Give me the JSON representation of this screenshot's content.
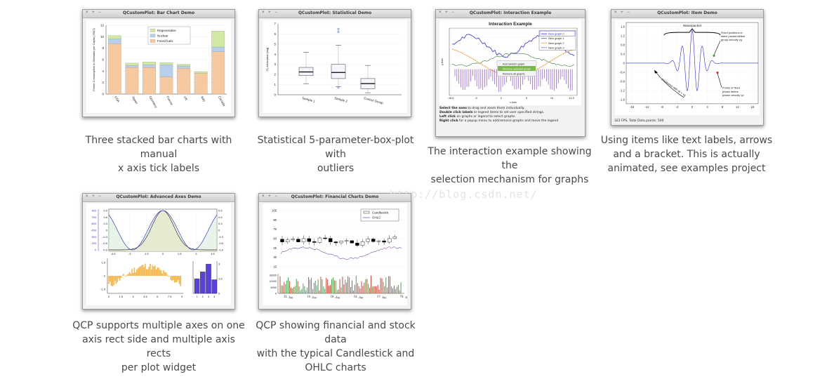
{
  "window_buttons": "× + −",
  "watermark": "http://blog.csdn.net/",
  "cards": [
    {
      "window_title": "QCustomPlot: Bar Chart Demo",
      "caption_lines": [
        "Three stacked bar charts with manual",
        "x axis tick labels"
      ],
      "chart_data": {
        "type": "bar",
        "stacked": true,
        "ylabel": "Power Consumption in Kilowatts per Capita (2007)",
        "ylim": [
          0,
          12
        ],
        "yticks": [
          "0",
          "2",
          "4",
          "6",
          "8",
          "10",
          "12"
        ],
        "categories": [
          "USA",
          "Japan",
          "Germany",
          "France",
          "UK",
          "Italy",
          "Canada"
        ],
        "legend_position": "top-center",
        "series": [
          {
            "name": "Fossil fuels",
            "color": "#f7c9a0",
            "values": [
              8.8,
              4.6,
              4.6,
              3.0,
              4.5,
              3.6,
              7.4
            ]
          },
          {
            "name": "Nuclear",
            "color": "#b8cfec",
            "values": [
              0.8,
              0.4,
              0.5,
              2.1,
              0.4,
              0.0,
              0.8
            ]
          },
          {
            "name": "Regenerative",
            "color": "#cfe8a4",
            "values": [
              0.6,
              0.4,
              0.5,
              0.4,
              0.3,
              0.3,
              2.8
            ]
          }
        ]
      }
    },
    {
      "window_title": "QCustomPlot: Statistical Demo",
      "caption_lines": [
        "Statistical 5-parameter-box-plot with",
        "outliers"
      ],
      "chart_data": {
        "type": "box",
        "ylabel": "O₂ Absorption [mg]",
        "ylim": [
          0,
          7
        ],
        "yticks": [
          "0",
          "1",
          "2",
          "3",
          "4",
          "5",
          "6",
          "7"
        ],
        "categories": [
          "Sample 1",
          "Sample 2",
          "Control Group"
        ],
        "boxes": [
          {
            "min": 1.1,
            "q1": 1.9,
            "median": 2.25,
            "q3": 2.7,
            "max": 4.2,
            "outliers": []
          },
          {
            "min": 0.8,
            "q1": 1.6,
            "median": 2.2,
            "q3": 3.0,
            "max": 4.9,
            "outliers": [
              0.7,
              6.2,
              6.5
            ]
          },
          {
            "min": 0.2,
            "q1": 0.6,
            "median": 1.1,
            "q3": 1.6,
            "max": 2.9,
            "outliers": []
          }
        ]
      }
    },
    {
      "window_title": "QCustomPlot: Interaction Example",
      "plot_title": "Interaction Example",
      "caption_lines": [
        "The interaction example showing the",
        "selection mechanism for graphs"
      ],
      "legend": [
        "New graph 0",
        "New graph 1",
        "New graph 2",
        "New graph 3"
      ],
      "context_menu": [
        "Add random graph",
        "Remove selected graph",
        "Remove all graphs"
      ],
      "xlabel": "x Axis",
      "ylabel": "y Axis",
      "xticks": [
        "-18.5",
        "-5",
        "0",
        "5",
        "10",
        "13.5"
      ],
      "info_lines": [
        {
          "bold": "Select the axes",
          "rest": " to drag and zoom them individually."
        },
        {
          "bold": "Double click labels",
          "rest": " or legend items to set user specified strings."
        },
        {
          "bold": "Left click",
          "rest": " on graphs or legend to select graphs."
        },
        {
          "bold": "Right click",
          "rest": " for a popup menu to add/remove graphs and move the legend"
        }
      ]
    },
    {
      "window_title": "QCustomPlot: Item Demo",
      "caption_lines": [
        "Using items like text labels, arrows",
        "and a bracket. This is actually",
        "animated, see examples project"
      ],
      "bracket_label": "Wavepacket",
      "note1": [
        "Fixed positions in",
        "wave packet define",
        "group velocity vg"
      ],
      "note2": [
        "Points of fixed",
        "phase define",
        "phase velocity vp"
      ],
      "dispersion_label": "Dispersion with vp < vg",
      "status": "322 FPS, Total Data points: 500",
      "xticks": [
        "-16",
        "-12",
        "-8",
        "-4",
        "0",
        "4",
        "8",
        "12",
        "16"
      ],
      "yticks": [
        "1.6",
        "1.2",
        "0.8",
        "0.4",
        "0",
        "-0.4",
        "-0.8",
        "-1.2",
        "-1.6"
      ]
    },
    {
      "window_title": "QCustomPlot: Advanced Axes Demo",
      "caption_lines": [
        "QCP supports multiple axes on one",
        "axis rect side and multiple axis rects",
        "per plot widget"
      ],
      "left_blue_ticks": [
        "900",
        "750",
        "600",
        "450",
        "300",
        "150",
        "0"
      ],
      "left_ticks": [
        "0.9",
        "0.6",
        "0.3",
        "0",
        "-0.3",
        "-0.6",
        "-0.9"
      ],
      "right_ticks": [
        "0.9",
        "0.6",
        "0.3",
        "0",
        "-0.3",
        "-0.6",
        "-0.9"
      ],
      "top_xticks": [
        "-4.5",
        "-3",
        "-1.5",
        "0",
        "1.5",
        "3",
        "4.5"
      ],
      "bottom_left_xticks": [
        "0",
        "1.5",
        "3",
        "4.5",
        "6",
        "7.5",
        "9"
      ],
      "bottom_left_yticks": [
        "1.5",
        "0",
        "-1.5"
      ],
      "bottom_right_xticks": [
        "1",
        "2",
        "3",
        "4"
      ],
      "bottom_right_yticks": [
        "3",
        "1.5",
        "0"
      ],
      "bars": [
        1.5,
        2.2,
        3.0,
        1.4
      ]
    },
    {
      "window_title": "QCustomPlot: Financial Charts Demo",
      "caption_lines": [
        "QCP showing financial and stock data",
        "with the typical Candlestick and",
        "OHLC charts"
      ],
      "legend": [
        "Candlestick",
        "OHLC"
      ],
      "yticks": [
        "105",
        "90",
        "75",
        "60",
        "45",
        "30",
        "15"
      ],
      "volume_ticks": [
        "18000",
        "12000",
        "6000",
        "0"
      ],
      "dates": [
        "11. Jun",
        "15. Jun",
        "19. Jun",
        "23. Jun",
        "27. Jun",
        "01. Jul"
      ]
    }
  ]
}
